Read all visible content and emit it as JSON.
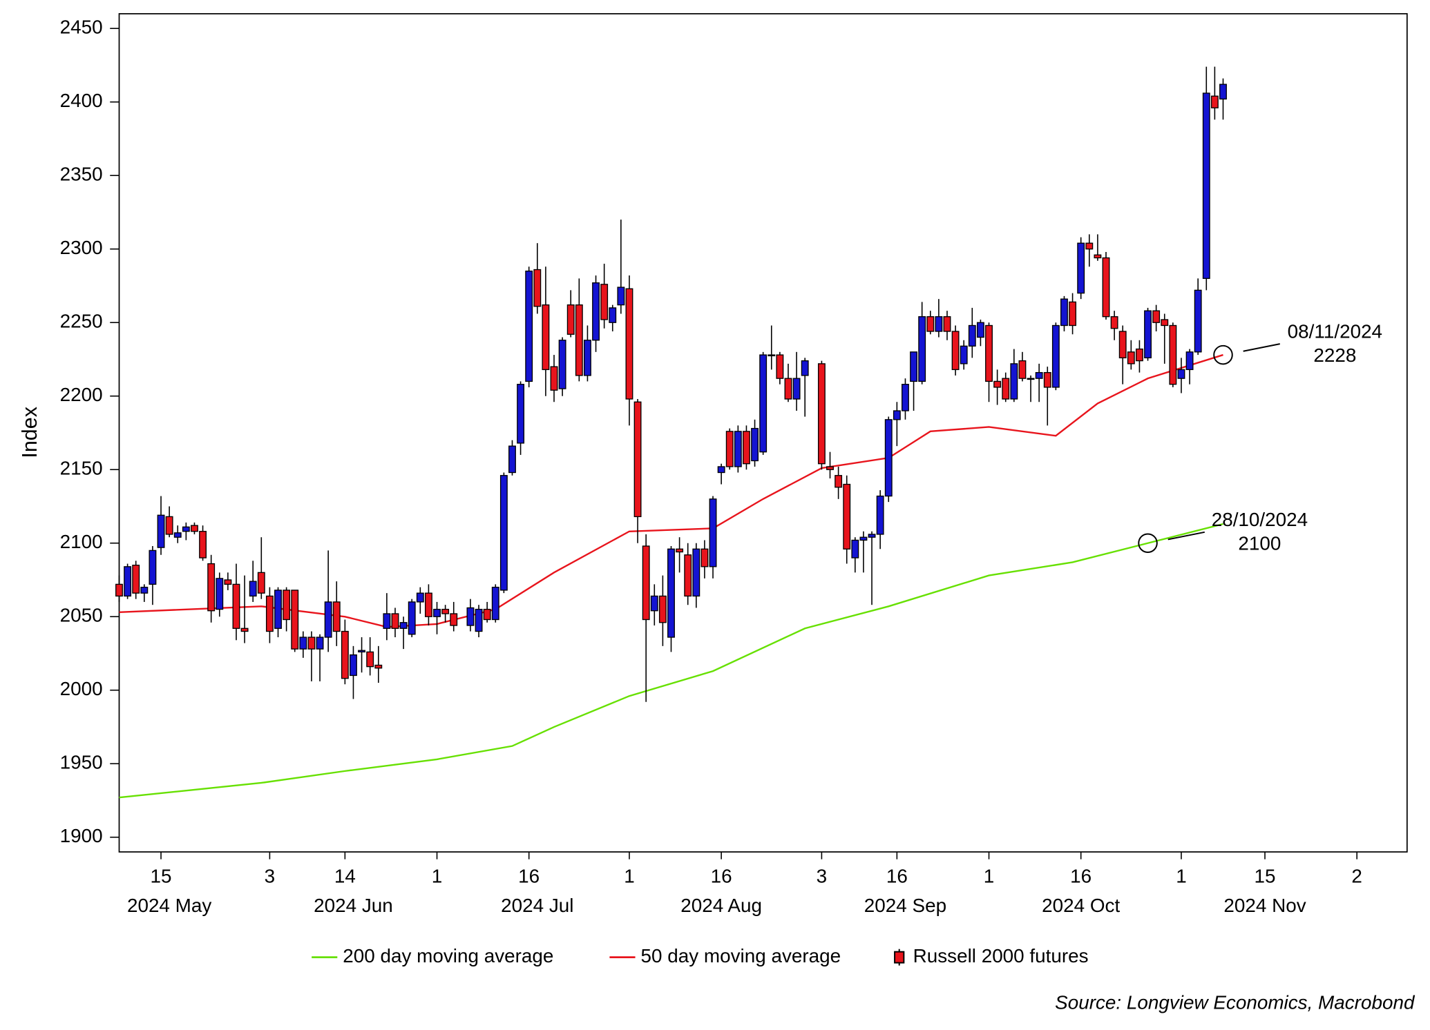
{
  "chart_data": {
    "type": "candlestick",
    "y_label": "Index",
    "source": "Source: Longview Economics, Macrobond",
    "ylim": [
      1890,
      2460
    ],
    "yticks": [
      1900,
      1950,
      2000,
      2050,
      2100,
      2150,
      2200,
      2250,
      2300,
      2350,
      2400,
      2450
    ],
    "xlim": [
      "2024-05-08",
      "2024-12-10"
    ],
    "xscale": "business-day",
    "xticks": [
      {
        "value": "2024-05-15",
        "label": "15"
      },
      {
        "value": "2024-06-03",
        "label": "3"
      },
      {
        "value": "2024-06-14",
        "label": "14"
      },
      {
        "value": "2024-07-01",
        "label": "1"
      },
      {
        "value": "2024-07-16",
        "label": "16"
      },
      {
        "value": "2024-08-01",
        "label": "1"
      },
      {
        "value": "2024-08-16",
        "label": "16"
      },
      {
        "value": "2024-09-03",
        "label": "3"
      },
      {
        "value": "2024-09-16",
        "label": "16"
      },
      {
        "value": "2024-10-01",
        "label": "1"
      },
      {
        "value": "2024-10-16",
        "label": "16"
      },
      {
        "value": "2024-11-01",
        "label": "1"
      },
      {
        "value": "2024-11-15",
        "label": "15"
      },
      {
        "value": "2024-12-02",
        "label": "2"
      }
    ],
    "x_period_labels": [
      {
        "value": "2024-05-16",
        "label": "2024 May"
      },
      {
        "value": "2024-06-17",
        "label": "2024 Jun"
      },
      {
        "value": "2024-07-17",
        "label": "2024 Jul"
      },
      {
        "value": "2024-08-16",
        "label": "2024 Aug"
      },
      {
        "value": "2024-09-17",
        "label": "2024 Sep"
      },
      {
        "value": "2024-10-16",
        "label": "2024 Oct"
      },
      {
        "value": "2024-11-15",
        "label": "2024 Nov"
      }
    ],
    "grid": false,
    "legend_position": "bottom",
    "series": [
      {
        "name": "200 day moving average",
        "type": "line",
        "color": "#66e000",
        "x": [
          "2024-05-08",
          "2024-05-31",
          "2024-06-14",
          "2024-07-01",
          "2024-07-12",
          "2024-07-19",
          "2024-08-01",
          "2024-08-15",
          "2024-08-30",
          "2024-09-13",
          "2024-10-01",
          "2024-10-15",
          "2024-10-28",
          "2024-11-08"
        ],
        "values": [
          1927,
          1937,
          1945,
          1953,
          1962,
          1975,
          1996,
          2013,
          2042,
          2057,
          2078,
          2087,
          2100,
          2113
        ]
      },
      {
        "name": "50 day moving average",
        "type": "line",
        "color": "#e8141c",
        "x": [
          "2024-05-08",
          "2024-05-31",
          "2024-06-14",
          "2024-06-21",
          "2024-07-01",
          "2024-07-10",
          "2024-07-19",
          "2024-08-01",
          "2024-08-15",
          "2024-08-23",
          "2024-09-03",
          "2024-09-13",
          "2024-09-20",
          "2024-10-01",
          "2024-10-11",
          "2024-10-18",
          "2024-10-28",
          "2024-11-08"
        ],
        "values": [
          2053,
          2057,
          2050,
          2043,
          2045,
          2055,
          2080,
          2108,
          2110,
          2130,
          2151,
          2158,
          2176,
          2179,
          2173,
          2195,
          2212,
          2228
        ]
      },
      {
        "name": "Russell 2000 futures",
        "type": "candlestick",
        "up_color": "#1414d2",
        "down_color": "#e8141c",
        "x": [
          "2024-05-08",
          "2024-05-09",
          "2024-05-10",
          "2024-05-13",
          "2024-05-14",
          "2024-05-15",
          "2024-05-16",
          "2024-05-17",
          "2024-05-20",
          "2024-05-21",
          "2024-05-22",
          "2024-05-23",
          "2024-05-24",
          "2024-05-27",
          "2024-05-28",
          "2024-05-29",
          "2024-05-30",
          "2024-05-31",
          "2024-06-03",
          "2024-06-04",
          "2024-06-05",
          "2024-06-06",
          "2024-06-07",
          "2024-06-10",
          "2024-06-11",
          "2024-06-12",
          "2024-06-13",
          "2024-06-14",
          "2024-06-17",
          "2024-06-18",
          "2024-06-19",
          "2024-06-20",
          "2024-06-21",
          "2024-06-24",
          "2024-06-25",
          "2024-06-26",
          "2024-06-27",
          "2024-06-28",
          "2024-07-01",
          "2024-07-02",
          "2024-07-03",
          "2024-07-05",
          "2024-07-08",
          "2024-07-09",
          "2024-07-10",
          "2024-07-11",
          "2024-07-12",
          "2024-07-15",
          "2024-07-16",
          "2024-07-17",
          "2024-07-18",
          "2024-07-19",
          "2024-07-22",
          "2024-07-23",
          "2024-07-24",
          "2024-07-25",
          "2024-07-26",
          "2024-07-29",
          "2024-07-30",
          "2024-07-31",
          "2024-08-01",
          "2024-08-02",
          "2024-08-05",
          "2024-08-06",
          "2024-08-07",
          "2024-08-08",
          "2024-08-09",
          "2024-08-12",
          "2024-08-13",
          "2024-08-14",
          "2024-08-15",
          "2024-08-16",
          "2024-08-19",
          "2024-08-20",
          "2024-08-21",
          "2024-08-22",
          "2024-08-23",
          "2024-08-26",
          "2024-08-27",
          "2024-08-28",
          "2024-08-29",
          "2024-08-30",
          "2024-09-03",
          "2024-09-04",
          "2024-09-05",
          "2024-09-06",
          "2024-09-09",
          "2024-09-10",
          "2024-09-11",
          "2024-09-12",
          "2024-09-13",
          "2024-09-16",
          "2024-09-17",
          "2024-09-18",
          "2024-09-19",
          "2024-09-20",
          "2024-09-23",
          "2024-09-24",
          "2024-09-25",
          "2024-09-26",
          "2024-09-27",
          "2024-09-30",
          "2024-10-01",
          "2024-10-02",
          "2024-10-03",
          "2024-10-04",
          "2024-10-07",
          "2024-10-08",
          "2024-10-09",
          "2024-10-10",
          "2024-10-11",
          "2024-10-14",
          "2024-10-15",
          "2024-10-16",
          "2024-10-17",
          "2024-10-18",
          "2024-10-21",
          "2024-10-22",
          "2024-10-23",
          "2024-10-24",
          "2024-10-25",
          "2024-10-28",
          "2024-10-29",
          "2024-10-30",
          "2024-10-31",
          "2024-11-01",
          "2024-11-04",
          "2024-11-05",
          "2024-11-06",
          "2024-11-07",
          "2024-11-08"
        ],
        "open": [
          2072,
          2064,
          2085,
          2066,
          2072,
          2097,
          2118,
          2104,
          2108,
          2112,
          2108,
          2086,
          2055,
          2075,
          2072,
          2042,
          2064,
          2080,
          2064,
          2042,
          2068,
          2068,
          2028,
          2036,
          2028,
          2036,
          2060,
          2040,
          2010,
          2026,
          2026,
          2017,
          2042,
          2052,
          2042,
          2038,
          2060,
          2066,
          2050,
          2055,
          2052,
          2044,
          2040,
          2055,
          2048,
          2068,
          2148,
          2168,
          2210,
          2286,
          2262,
          2220,
          2205,
          2262,
          2262,
          2214,
          2238,
          2276,
          2250,
          2262,
          2273,
          2196,
          2098,
          2054,
          2064,
          2036,
          2096,
          2092,
          2064,
          2096,
          2084,
          2148,
          2176,
          2152,
          2176,
          2156,
          2162,
          2228,
          2228,
          2212,
          2198,
          2214,
          2222,
          2152,
          2146,
          2140,
          2090,
          2102,
          2104,
          2106,
          2132,
          2184,
          2190,
          2210,
          2210,
          2254,
          2244,
          2254,
          2244,
          2222,
          2234,
          2240,
          2248,
          2210,
          2212,
          2198,
          2224,
          2212,
          2212,
          2216,
          2206,
          2248,
          2264,
          2270,
          2304,
          2296,
          2294,
          2254,
          2244,
          2230,
          2232,
          2226,
          2258,
          2252,
          2248,
          2212,
          2218,
          2230,
          2280,
          2404,
          2402
        ],
        "high": [
          2078,
          2086,
          2088,
          2072,
          2098,
          2132,
          2125,
          2112,
          2114,
          2114,
          2112,
          2092,
          2080,
          2080,
          2086,
          2078,
          2088,
          2104,
          2070,
          2070,
          2070,
          2068,
          2040,
          2040,
          2038,
          2095,
          2074,
          2048,
          2030,
          2036,
          2036,
          2030,
          2066,
          2056,
          2050,
          2062,
          2070,
          2072,
          2060,
          2058,
          2060,
          2062,
          2058,
          2060,
          2072,
          2148,
          2170,
          2210,
          2288,
          2304,
          2288,
          2228,
          2240,
          2272,
          2280,
          2248,
          2282,
          2290,
          2262,
          2320,
          2282,
          2198,
          2106,
          2072,
          2078,
          2098,
          2104,
          2100,
          2100,
          2102,
          2132,
          2154,
          2178,
          2180,
          2180,
          2184,
          2230,
          2248,
          2230,
          2222,
          2230,
          2226,
          2224,
          2162,
          2152,
          2146,
          2104,
          2108,
          2108,
          2136,
          2186,
          2196,
          2212,
          2230,
          2264,
          2258,
          2266,
          2258,
          2248,
          2238,
          2260,
          2252,
          2250,
          2218,
          2216,
          2232,
          2230,
          2214,
          2222,
          2220,
          2250,
          2268,
          2270,
          2308,
          2310,
          2310,
          2298,
          2258,
          2248,
          2238,
          2238,
          2260,
          2262,
          2256,
          2250,
          2226,
          2232,
          2280,
          2424,
          2424,
          2416
        ],
        "low": [
          2060,
          2062,
          2062,
          2060,
          2058,
          2092,
          2104,
          2100,
          2102,
          2106,
          2088,
          2046,
          2050,
          2068,
          2034,
          2032,
          2060,
          2062,
          2032,
          2036,
          2040,
          2026,
          2022,
          2006,
          2006,
          2026,
          2030,
          2004,
          1994,
          2012,
          2010,
          2005,
          2034,
          2036,
          2028,
          2036,
          2052,
          2044,
          2038,
          2046,
          2040,
          2040,
          2036,
          2046,
          2046,
          2066,
          2146,
          2160,
          2206,
          2256,
          2200,
          2196,
          2200,
          2240,
          2210,
          2210,
          2230,
          2246,
          2244,
          2256,
          2180,
          2100,
          1992,
          2044,
          2030,
          2026,
          2080,
          2058,
          2056,
          2076,
          2076,
          2140,
          2150,
          2148,
          2150,
          2152,
          2160,
          2218,
          2208,
          2196,
          2190,
          2186,
          2150,
          2144,
          2130,
          2086,
          2080,
          2080,
          2058,
          2096,
          2128,
          2166,
          2184,
          2190,
          2208,
          2242,
          2240,
          2238,
          2214,
          2218,
          2226,
          2234,
          2196,
          2194,
          2196,
          2196,
          2210,
          2196,
          2196,
          2180,
          2204,
          2244,
          2242,
          2266,
          2288,
          2292,
          2252,
          2238,
          2208,
          2218,
          2216,
          2224,
          2244,
          2222,
          2206,
          2202,
          2208,
          2228,
          2272,
          2388,
          2388
        ],
        "close": [
          2064,
          2084,
          2066,
          2070,
          2095,
          2119,
          2106,
          2107,
          2111,
          2108,
          2090,
          2054,
          2076,
          2072,
          2042,
          2040,
          2074,
          2066,
          2040,
          2068,
          2048,
          2028,
          2036,
          2028,
          2036,
          2060,
          2040,
          2008,
          2024,
          2027,
          2016,
          2015,
          2052,
          2042,
          2046,
          2060,
          2066,
          2050,
          2055,
          2052,
          2044,
          2056,
          2055,
          2048,
          2070,
          2146,
          2166,
          2208,
          2285,
          2261,
          2218,
          2204,
          2238,
          2242,
          2214,
          2238,
          2277,
          2252,
          2260,
          2274,
          2198,
          2118,
          2048,
          2064,
          2046,
          2096,
          2094,
          2064,
          2096,
          2084,
          2130,
          2152,
          2152,
          2176,
          2154,
          2178,
          2228,
          2228,
          2212,
          2198,
          2212,
          2224,
          2154,
          2150,
          2138,
          2096,
          2102,
          2104,
          2106,
          2132,
          2184,
          2190,
          2208,
          2230,
          2254,
          2244,
          2254,
          2244,
          2218,
          2234,
          2248,
          2250,
          2210,
          2206,
          2198,
          2222,
          2212,
          2212,
          2216,
          2206,
          2248,
          2266,
          2248,
          2304,
          2300,
          2294,
          2254,
          2246,
          2226,
          2222,
          2224,
          2258,
          2250,
          2248,
          2208,
          2218,
          2230,
          2272,
          2406,
          2396,
          2412
        ]
      }
    ],
    "annotations": [
      {
        "x": "2024-11-08",
        "y": 2228,
        "lines": [
          "08/11/2024",
          "2228"
        ]
      },
      {
        "x": "2024-10-28",
        "y": 2100,
        "lines": [
          "28/10/2024",
          "2100"
        ]
      }
    ]
  }
}
